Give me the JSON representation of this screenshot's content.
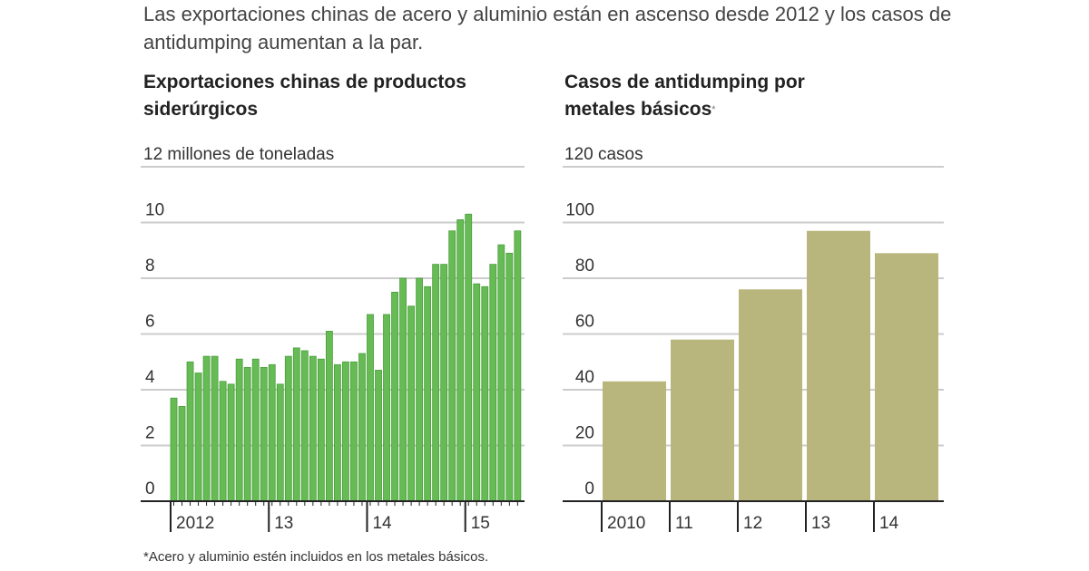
{
  "intro": "Las exportaciones chinas de acero y aluminio están en ascenso desde 2012 y los casos de antidumping aumentan a la par.",
  "footnote": "*Acero y aluminio estén incluidos en los metales básicos.",
  "colors": {
    "left_bar": "#66bb55",
    "left_bar_edge": "#4a9e3c",
    "right_bar": "#b8b67c",
    "grid": "#cccccc",
    "axis": "#222222"
  },
  "chart_data": [
    {
      "type": "bar",
      "title": "Exportaciones chinas de productos siderúrgicos",
      "ylabel": "12 millones de toneladas",
      "ylim": [
        0,
        12
      ],
      "yticks": [
        "0",
        "2",
        "4",
        "6",
        "8",
        "10"
      ],
      "xtick_labels": [
        "2012",
        "13",
        "14",
        "15"
      ],
      "grid": true,
      "frequency": "monthly",
      "values": [
        3.7,
        3.4,
        5.0,
        4.6,
        5.2,
        5.2,
        4.3,
        4.2,
        5.1,
        4.8,
        5.1,
        4.8,
        4.9,
        4.2,
        5.2,
        5.5,
        5.4,
        5.2,
        5.1,
        6.1,
        4.9,
        5.0,
        5.0,
        5.3,
        6.7,
        4.7,
        6.7,
        7.5,
        8.0,
        7.0,
        8.0,
        7.7,
        8.5,
        8.5,
        9.7,
        10.1,
        10.3,
        7.8,
        7.7,
        8.5,
        9.2,
        8.9,
        9.7
      ]
    },
    {
      "type": "bar",
      "title": "Casos de antidumping por metales básicos",
      "title_mark": "*",
      "ylabel": "120 casos",
      "ylim": [
        0,
        120
      ],
      "yticks": [
        "0",
        "20",
        "40",
        "60",
        "80",
        "100"
      ],
      "categories": [
        "2010",
        "11",
        "12",
        "13",
        "14"
      ],
      "values": [
        43,
        58,
        76,
        97,
        89
      ],
      "grid": true
    }
  ]
}
